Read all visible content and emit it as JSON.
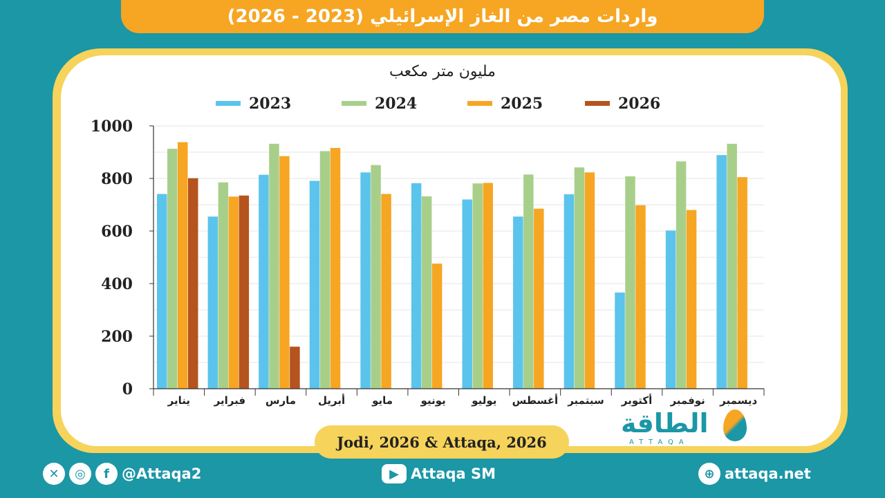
{
  "title": "واردات مصر من الغاز الإسرائيلي (2023 - 2026)",
  "source": "Jodi, 2026 & Attaqa, 2026",
  "logo": {
    "arabic": "الطاقة",
    "latin": "ATTAQA"
  },
  "footer": {
    "social_handle": "@Attaqa2",
    "youtube": "Attaqa SM",
    "website": "attaqa.net"
  },
  "colors": {
    "2023": "#5bc4ec",
    "2024": "#a8cf8a",
    "2025": "#f6a623",
    "2026": "#b5541f"
  },
  "chart_data": {
    "type": "bar",
    "unit_label": "مليون متر مكعب",
    "categories": [
      "يناير",
      "فبراير",
      "مارس",
      "أبريل",
      "مايو",
      "يونيو",
      "يوليو",
      "أغسطس",
      "سبتمبر",
      "أكتوبر",
      "نوفمبر",
      "ديسمبر"
    ],
    "series": [
      {
        "name": "2023",
        "values": [
          741,
          655,
          814,
          791,
          823,
          782,
          720,
          655,
          740,
          366,
          602,
          889
        ]
      },
      {
        "name": "2024",
        "values": [
          913,
          785,
          932,
          904,
          851,
          732,
          781,
          815,
          842,
          808,
          865,
          932
        ]
      },
      {
        "name": "2025",
        "values": [
          938,
          731,
          885,
          916,
          741,
          476,
          783,
          685,
          823,
          698,
          680,
          805
        ]
      },
      {
        "name": "2026",
        "values": [
          801,
          735,
          160,
          null,
          null,
          null,
          null,
          null,
          null,
          null,
          null,
          null
        ]
      }
    ],
    "yticks": [
      0,
      200,
      400,
      600,
      800,
      1000
    ],
    "ylim": [
      0,
      1000
    ],
    "grid": true,
    "legend": "top"
  }
}
